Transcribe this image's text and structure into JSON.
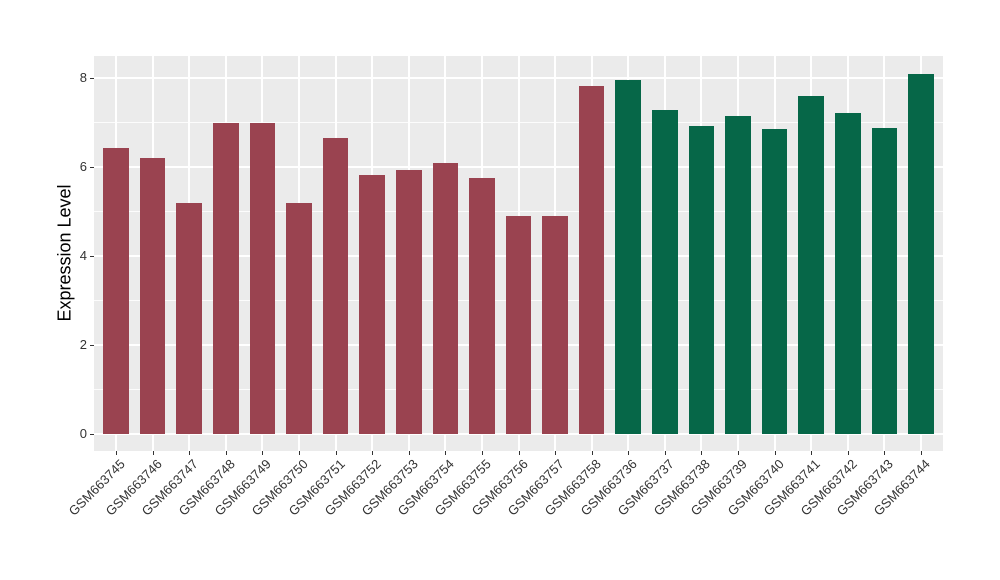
{
  "figure": {
    "background": "#FFFFFF"
  },
  "chart_data": {
    "type": "bar",
    "title": "",
    "xlabel": "",
    "ylabel": "Expression Level",
    "ylim": [
      0,
      8.5
    ],
    "yticks": [
      0,
      2,
      4,
      6,
      8
    ],
    "yticks_minor": [
      1,
      3,
      5,
      7
    ],
    "grid": "on",
    "legend_position": "none",
    "panel_background": "#EBEBEB",
    "grid_color": "#FFFFFF",
    "tick_label_color": "#333333",
    "axis_title_color": "#000000",
    "x_label_angle": 45,
    "bar_width_fraction": 0.7,
    "categories": [
      "GSM663745",
      "GSM663746",
      "GSM663747",
      "GSM663748",
      "GSM663749",
      "GSM663750",
      "GSM663751",
      "GSM663752",
      "GSM663753",
      "GSM663754",
      "GSM663755",
      "GSM663756",
      "GSM663757",
      "GSM663758",
      "GSM663736",
      "GSM663737",
      "GSM663738",
      "GSM663739",
      "GSM663740",
      "GSM663741",
      "GSM663742",
      "GSM663743",
      "GSM663744"
    ],
    "values": [
      6.42,
      6.2,
      5.2,
      6.98,
      6.98,
      5.2,
      6.66,
      5.81,
      5.94,
      6.1,
      5.75,
      4.91,
      4.91,
      7.82,
      7.95,
      7.28,
      6.92,
      7.15,
      6.85,
      7.59,
      7.21,
      6.88,
      8.08
    ],
    "bar_groups": [
      "group1",
      "group1",
      "group1",
      "group1",
      "group1",
      "group1",
      "group1",
      "group1",
      "group1",
      "group1",
      "group1",
      "group1",
      "group1",
      "group1",
      "group2",
      "group2",
      "group2",
      "group2",
      "group2",
      "group2",
      "group2",
      "group2",
      "group2"
    ],
    "group_colors": {
      "group1": "#9A4350",
      "group2": "#066748"
    }
  }
}
